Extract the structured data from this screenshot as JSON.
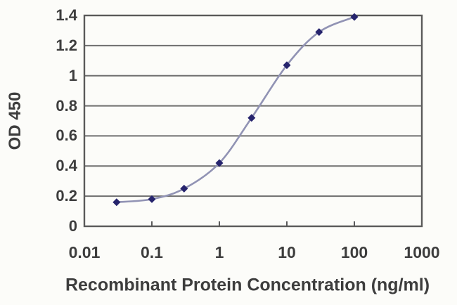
{
  "chart_data": {
    "type": "line",
    "title": "",
    "xlabel": "Recombinant Protein Concentration (ng/ml)",
    "ylabel": "OD 450",
    "x_scale": "log",
    "y_scale": "linear",
    "xlim": [
      0.01,
      1000
    ],
    "ylim": [
      0,
      1.4
    ],
    "x": [
      0.03,
      0.1,
      0.3,
      1,
      3,
      10,
      30,
      100
    ],
    "y": [
      0.16,
      0.18,
      0.25,
      0.42,
      0.72,
      1.07,
      1.29,
      1.39
    ],
    "x_tick_values": [
      0.01,
      0.1,
      1,
      10,
      100,
      1000
    ],
    "x_tick_labels": [
      "0.01",
      "0.1",
      "1",
      "10",
      "100",
      "1000"
    ],
    "y_tick_values": [
      0,
      0.2,
      0.4,
      0.6,
      0.8,
      1,
      1.2,
      1.4
    ],
    "y_tick_labels": [
      "0",
      "0.2",
      "0.4",
      "0.6",
      "0.8",
      "1",
      "1.2",
      "1.4"
    ],
    "grid": "horizontal",
    "legend": "none",
    "marker": "diamond",
    "line_style": "smooth",
    "colors": {
      "line": "#9193b4",
      "marker": "#26246d",
      "gridline": "#6f6f6f",
      "axis_frame": "#5a5a5a",
      "text": "#3d3d3d",
      "background": "#fcfcf9"
    }
  }
}
